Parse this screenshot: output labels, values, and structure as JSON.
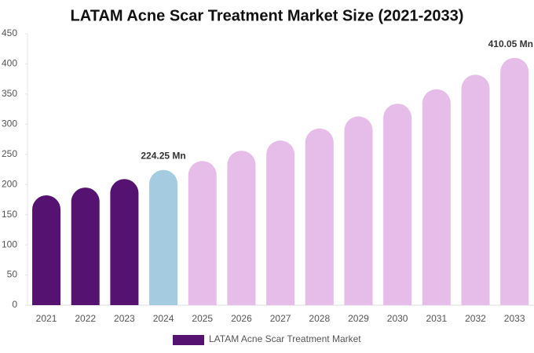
{
  "chart_data": {
    "type": "bar",
    "title": "LATAM Acne Scar Treatment Market Size (2021-2033)",
    "categories": [
      "2021",
      "2022",
      "2023",
      "2024",
      "2025",
      "2026",
      "2027",
      "2028",
      "2029",
      "2030",
      "2031",
      "2032",
      "2033"
    ],
    "series": [
      {
        "name": "LATAM Acne Scar Treatment Market",
        "color": "#561270",
        "values": [
          182,
          195,
          209,
          224.25,
          239,
          256,
          273,
          293,
          313,
          334,
          358,
          382,
          410.05
        ],
        "value_labels": [
          null,
          null,
          null,
          "224.25 Mn",
          null,
          null,
          null,
          null,
          null,
          null,
          null,
          null,
          "410.05 Mn"
        ],
        "colors": [
          "#561270",
          "#561270",
          "#561270",
          "#a4cbe0",
          "#e6bde8",
          "#e6bde8",
          "#e6bde8",
          "#e6bde8",
          "#e6bde8",
          "#e6bde8",
          "#e6bde8",
          "#e6bde8",
          "#e6bde8"
        ]
      }
    ],
    "ylim": [
      0,
      450
    ],
    "yticks": [
      0,
      50,
      100,
      150,
      200,
      250,
      300,
      350,
      400,
      450
    ],
    "legend": "bottom"
  }
}
